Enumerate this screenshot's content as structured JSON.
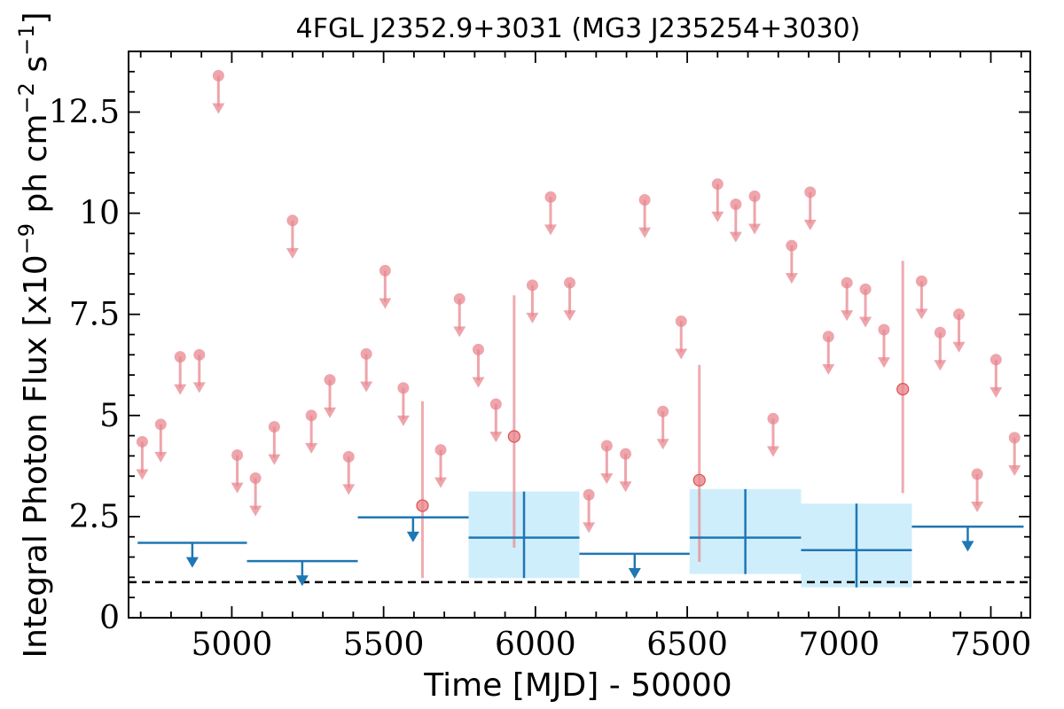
{
  "chart_data": {
    "type": "scatter",
    "title": "4FGL J2352.9+3031 (MG3 J235254+3030)",
    "xlabel": "Time [MJD] - 50000",
    "ylabel": "Integral Photon Flux [x10",
    "ylabel_exp": "−9",
    "ylabel_unit": " ph cm",
    "ylabel_unit_exp": "−2",
    "ylabel_s": " s",
    "ylabel_s_exp": "−1",
    "ylabel_close": "]",
    "xlim": [
      4660,
      7630
    ],
    "ylim": [
      0,
      14
    ],
    "x_ticks": [
      5000,
      5500,
      6000,
      6500,
      7000,
      7500
    ],
    "x_tick_labels": [
      "5000",
      "5500",
      "6000",
      "6500",
      "7000",
      "7500"
    ],
    "y_ticks": [
      0,
      2.5,
      5,
      7.5,
      10,
      12.5
    ],
    "y_tick_labels": [
      "0",
      "2.5",
      "5",
      "7.5",
      "10",
      "12.5"
    ],
    "reference_line": 0.88,
    "colors": {
      "short_bins": "#e8878f",
      "long_bins": "#1f77b4",
      "long_bins_fill": "#cfeefc",
      "reference": "#000000"
    },
    "short_bins_upper_limits": [
      {
        "x": 4705,
        "y": 4.35
      },
      {
        "x": 4766,
        "y": 4.78
      },
      {
        "x": 4830,
        "y": 6.45
      },
      {
        "x": 4893,
        "y": 6.5
      },
      {
        "x": 4956,
        "y": 13.4
      },
      {
        "x": 5018,
        "y": 4.02
      },
      {
        "x": 5078,
        "y": 3.45
      },
      {
        "x": 5140,
        "y": 4.72
      },
      {
        "x": 5200,
        "y": 9.82
      },
      {
        "x": 5262,
        "y": 5.0
      },
      {
        "x": 5323,
        "y": 5.88
      },
      {
        "x": 5385,
        "y": 3.98
      },
      {
        "x": 5443,
        "y": 6.52
      },
      {
        "x": 5505,
        "y": 8.58
      },
      {
        "x": 5565,
        "y": 5.68
      },
      {
        "x": 5688,
        "y": 4.15
      },
      {
        "x": 5750,
        "y": 7.88
      },
      {
        "x": 5812,
        "y": 6.63
      },
      {
        "x": 5870,
        "y": 5.28
      },
      {
        "x": 5990,
        "y": 8.22
      },
      {
        "x": 6050,
        "y": 10.4
      },
      {
        "x": 6113,
        "y": 8.28
      },
      {
        "x": 6176,
        "y": 3.04
      },
      {
        "x": 6235,
        "y": 4.25
      },
      {
        "x": 6297,
        "y": 4.05
      },
      {
        "x": 6360,
        "y": 10.33
      },
      {
        "x": 6420,
        "y": 5.1
      },
      {
        "x": 6480,
        "y": 7.33
      },
      {
        "x": 6600,
        "y": 10.72
      },
      {
        "x": 6660,
        "y": 10.22
      },
      {
        "x": 6722,
        "y": 10.42
      },
      {
        "x": 6783,
        "y": 4.92
      },
      {
        "x": 6844,
        "y": 9.2
      },
      {
        "x": 6905,
        "y": 10.52
      },
      {
        "x": 6965,
        "y": 6.95
      },
      {
        "x": 7026,
        "y": 8.28
      },
      {
        "x": 7087,
        "y": 8.12
      },
      {
        "x": 7148,
        "y": 7.12
      },
      {
        "x": 7272,
        "y": 8.32
      },
      {
        "x": 7333,
        "y": 7.05
      },
      {
        "x": 7395,
        "y": 7.5
      },
      {
        "x": 7455,
        "y": 3.55
      },
      {
        "x": 7517,
        "y": 6.38
      },
      {
        "x": 7578,
        "y": 4.45
      }
    ],
    "short_bins_detections": [
      {
        "x": 5628,
        "y": 2.77,
        "ymin": 0.98,
        "ymax": 5.35
      },
      {
        "x": 5930,
        "y": 4.48,
        "ymin": 1.73,
        "ymax": 7.97
      },
      {
        "x": 6540,
        "y": 3.4,
        "ymin": 1.38,
        "ymax": 6.25
      },
      {
        "x": 7210,
        "y": 5.65,
        "ymin": 3.08,
        "ymax": 8.82
      }
    ],
    "long_bins_upper_limits": [
      {
        "x0": 4690,
        "x1": 5050,
        "y": 1.85,
        "xc": 4870
      },
      {
        "x0": 5050,
        "x1": 5415,
        "y": 1.4,
        "xc": 5232
      },
      {
        "x0": 5415,
        "x1": 5780,
        "y": 2.48,
        "xc": 5597
      },
      {
        "x0": 6145,
        "x1": 6508,
        "y": 1.58,
        "xc": 6327
      },
      {
        "x0": 7240,
        "x1": 7608,
        "y": 2.25,
        "xc": 7424
      }
    ],
    "long_bins_detections": [
      {
        "x0": 5780,
        "x1": 6145,
        "y": 1.98,
        "ymin": 0.98,
        "ymax": 3.12
      },
      {
        "x0": 6508,
        "x1": 6875,
        "y": 1.98,
        "ymin": 1.08,
        "ymax": 3.18
      },
      {
        "x0": 6875,
        "x1": 7240,
        "y": 1.67,
        "ymin": 0.75,
        "ymax": 2.82
      }
    ]
  }
}
